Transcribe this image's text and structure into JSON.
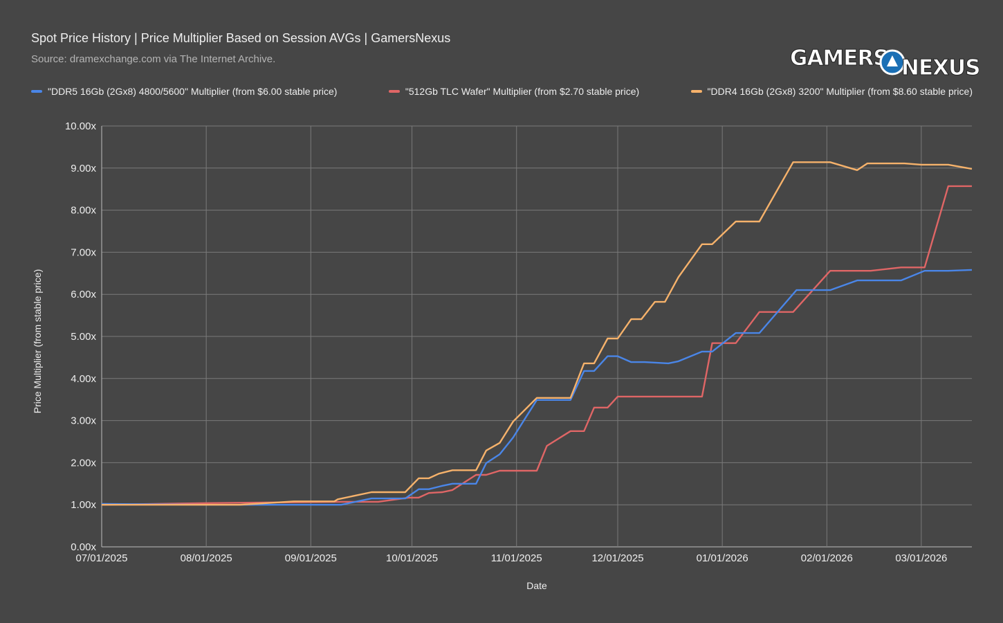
{
  "header": {
    "title": "Spot Price History | Price Multiplier Based on Session AVGs | GamersNexus",
    "source": "Source: dramexchange.com via The Internet Archive.",
    "logo_text": "GAMERSNEXUS"
  },
  "chart_data": {
    "type": "line",
    "title": "Spot Price History | Price Multiplier Based on Session AVGs | GamersNexus",
    "xlabel": "Date",
    "ylabel": "Price Multiplier (from stable price)",
    "xlim": [
      "2025-07-01",
      "2026-03-16"
    ],
    "ylim": [
      0,
      10
    ],
    "grid": true,
    "legend_position": "top",
    "x_ticks": [
      "07/01/2025",
      "08/01/2025",
      "09/01/2025",
      "10/01/2025",
      "11/01/2025",
      "12/01/2025",
      "01/01/2026",
      "02/01/2026",
      "03/01/2026"
    ],
    "x_tick_dates": [
      "2025-07-01",
      "2025-08-01",
      "2025-09-01",
      "2025-10-01",
      "2025-11-01",
      "2025-12-01",
      "2026-01-01",
      "2026-02-01",
      "2026-03-01"
    ],
    "y_ticks": [
      "0.00x",
      "1.00x",
      "2.00x",
      "3.00x",
      "4.00x",
      "5.00x",
      "6.00x",
      "7.00x",
      "8.00x",
      "9.00x",
      "10.00x"
    ],
    "y_tick_values": [
      0,
      1,
      2,
      3,
      4,
      5,
      6,
      7,
      8,
      9,
      10
    ],
    "series": [
      {
        "name": "\"DDR5 16Gb (2Gx8) 4800/5600\" Multiplier (from $6.00 stable price)",
        "color": "#4a86e8",
        "x": [
          "2025-07-01",
          "2025-08-01",
          "2025-09-10",
          "2025-09-19",
          "2025-09-29",
          "2025-10-03",
          "2025-10-06",
          "2025-10-10",
          "2025-10-13",
          "2025-10-20",
          "2025-10-23",
          "2025-10-27",
          "2025-10-31",
          "2025-11-07",
          "2025-11-17",
          "2025-11-21",
          "2025-11-24",
          "2025-11-28",
          "2025-12-01",
          "2025-12-05",
          "2025-12-09",
          "2025-12-16",
          "2025-12-19",
          "2025-12-26",
          "2025-12-29",
          "2026-01-05",
          "2026-01-12",
          "2026-01-23",
          "2026-02-02",
          "2026-02-10",
          "2026-02-23",
          "2026-03-02",
          "2026-03-09",
          "2026-03-16"
        ],
        "y": [
          1.02,
          1.0,
          1.0,
          1.15,
          1.15,
          1.37,
          1.37,
          1.45,
          1.5,
          1.5,
          1.99,
          2.2,
          2.6,
          3.49,
          3.49,
          4.18,
          4.18,
          4.53,
          4.53,
          4.39,
          4.39,
          4.36,
          4.41,
          4.64,
          4.64,
          5.08,
          5.08,
          6.1,
          6.1,
          6.33,
          6.33,
          6.56,
          6.56,
          6.58
        ]
      },
      {
        "name": "\"512Gb TLC Wafer\" Multiplier (from $2.70 stable price)",
        "color": "#e06666",
        "x": [
          "2025-07-01",
          "2025-08-01",
          "2025-09-10",
          "2025-09-21",
          "2025-09-30",
          "2025-10-03",
          "2025-10-06",
          "2025-10-10",
          "2025-10-13",
          "2025-10-20",
          "2025-10-23",
          "2025-10-27",
          "2025-11-07",
          "2025-11-10",
          "2025-11-17",
          "2025-11-21",
          "2025-11-24",
          "2025-11-28",
          "2025-12-01",
          "2025-12-26",
          "2025-12-29",
          "2026-01-05",
          "2026-01-12",
          "2026-01-22",
          "2026-02-02",
          "2026-02-14",
          "2026-02-23",
          "2026-03-02",
          "2026-03-09",
          "2026-03-16"
        ],
        "y": [
          1.0,
          1.04,
          1.07,
          1.07,
          1.17,
          1.17,
          1.28,
          1.3,
          1.35,
          1.71,
          1.71,
          1.81,
          1.81,
          2.4,
          2.75,
          2.75,
          3.31,
          3.31,
          3.57,
          3.57,
          4.84,
          4.84,
          5.58,
          5.58,
          6.56,
          6.56,
          6.64,
          6.64,
          8.57,
          8.57
        ]
      },
      {
        "name": "\"DDR4 16Gb (2Gx8) 3200\" Multiplier (from $8.60 stable price)",
        "color": "#f6b26b",
        "x": [
          "2025-07-01",
          "2025-08-11",
          "2025-08-27",
          "2025-09-08",
          "2025-09-09",
          "2025-09-19",
          "2025-09-29",
          "2025-10-03",
          "2025-10-06",
          "2025-10-09",
          "2025-10-13",
          "2025-10-20",
          "2025-10-23",
          "2025-10-27",
          "2025-10-31",
          "2025-11-07",
          "2025-11-17",
          "2025-11-21",
          "2025-11-24",
          "2025-11-28",
          "2025-12-01",
          "2025-12-05",
          "2025-12-08",
          "2025-12-12",
          "2025-12-15",
          "2025-12-19",
          "2025-12-26",
          "2025-12-29",
          "2026-01-05",
          "2026-01-12",
          "2026-01-22",
          "2026-02-02",
          "2026-02-10",
          "2026-02-13",
          "2026-02-24",
          "2026-03-01",
          "2026-03-09",
          "2026-03-16"
        ],
        "y": [
          1.0,
          1.0,
          1.08,
          1.08,
          1.13,
          1.3,
          1.3,
          1.63,
          1.63,
          1.74,
          1.82,
          1.82,
          2.29,
          2.47,
          2.98,
          3.54,
          3.54,
          4.36,
          4.36,
          4.95,
          4.95,
          5.41,
          5.41,
          5.82,
          5.82,
          6.41,
          7.19,
          7.19,
          7.73,
          7.73,
          9.14,
          9.14,
          8.95,
          9.11,
          9.11,
          9.08,
          9.08,
          8.98
        ]
      }
    ]
  }
}
